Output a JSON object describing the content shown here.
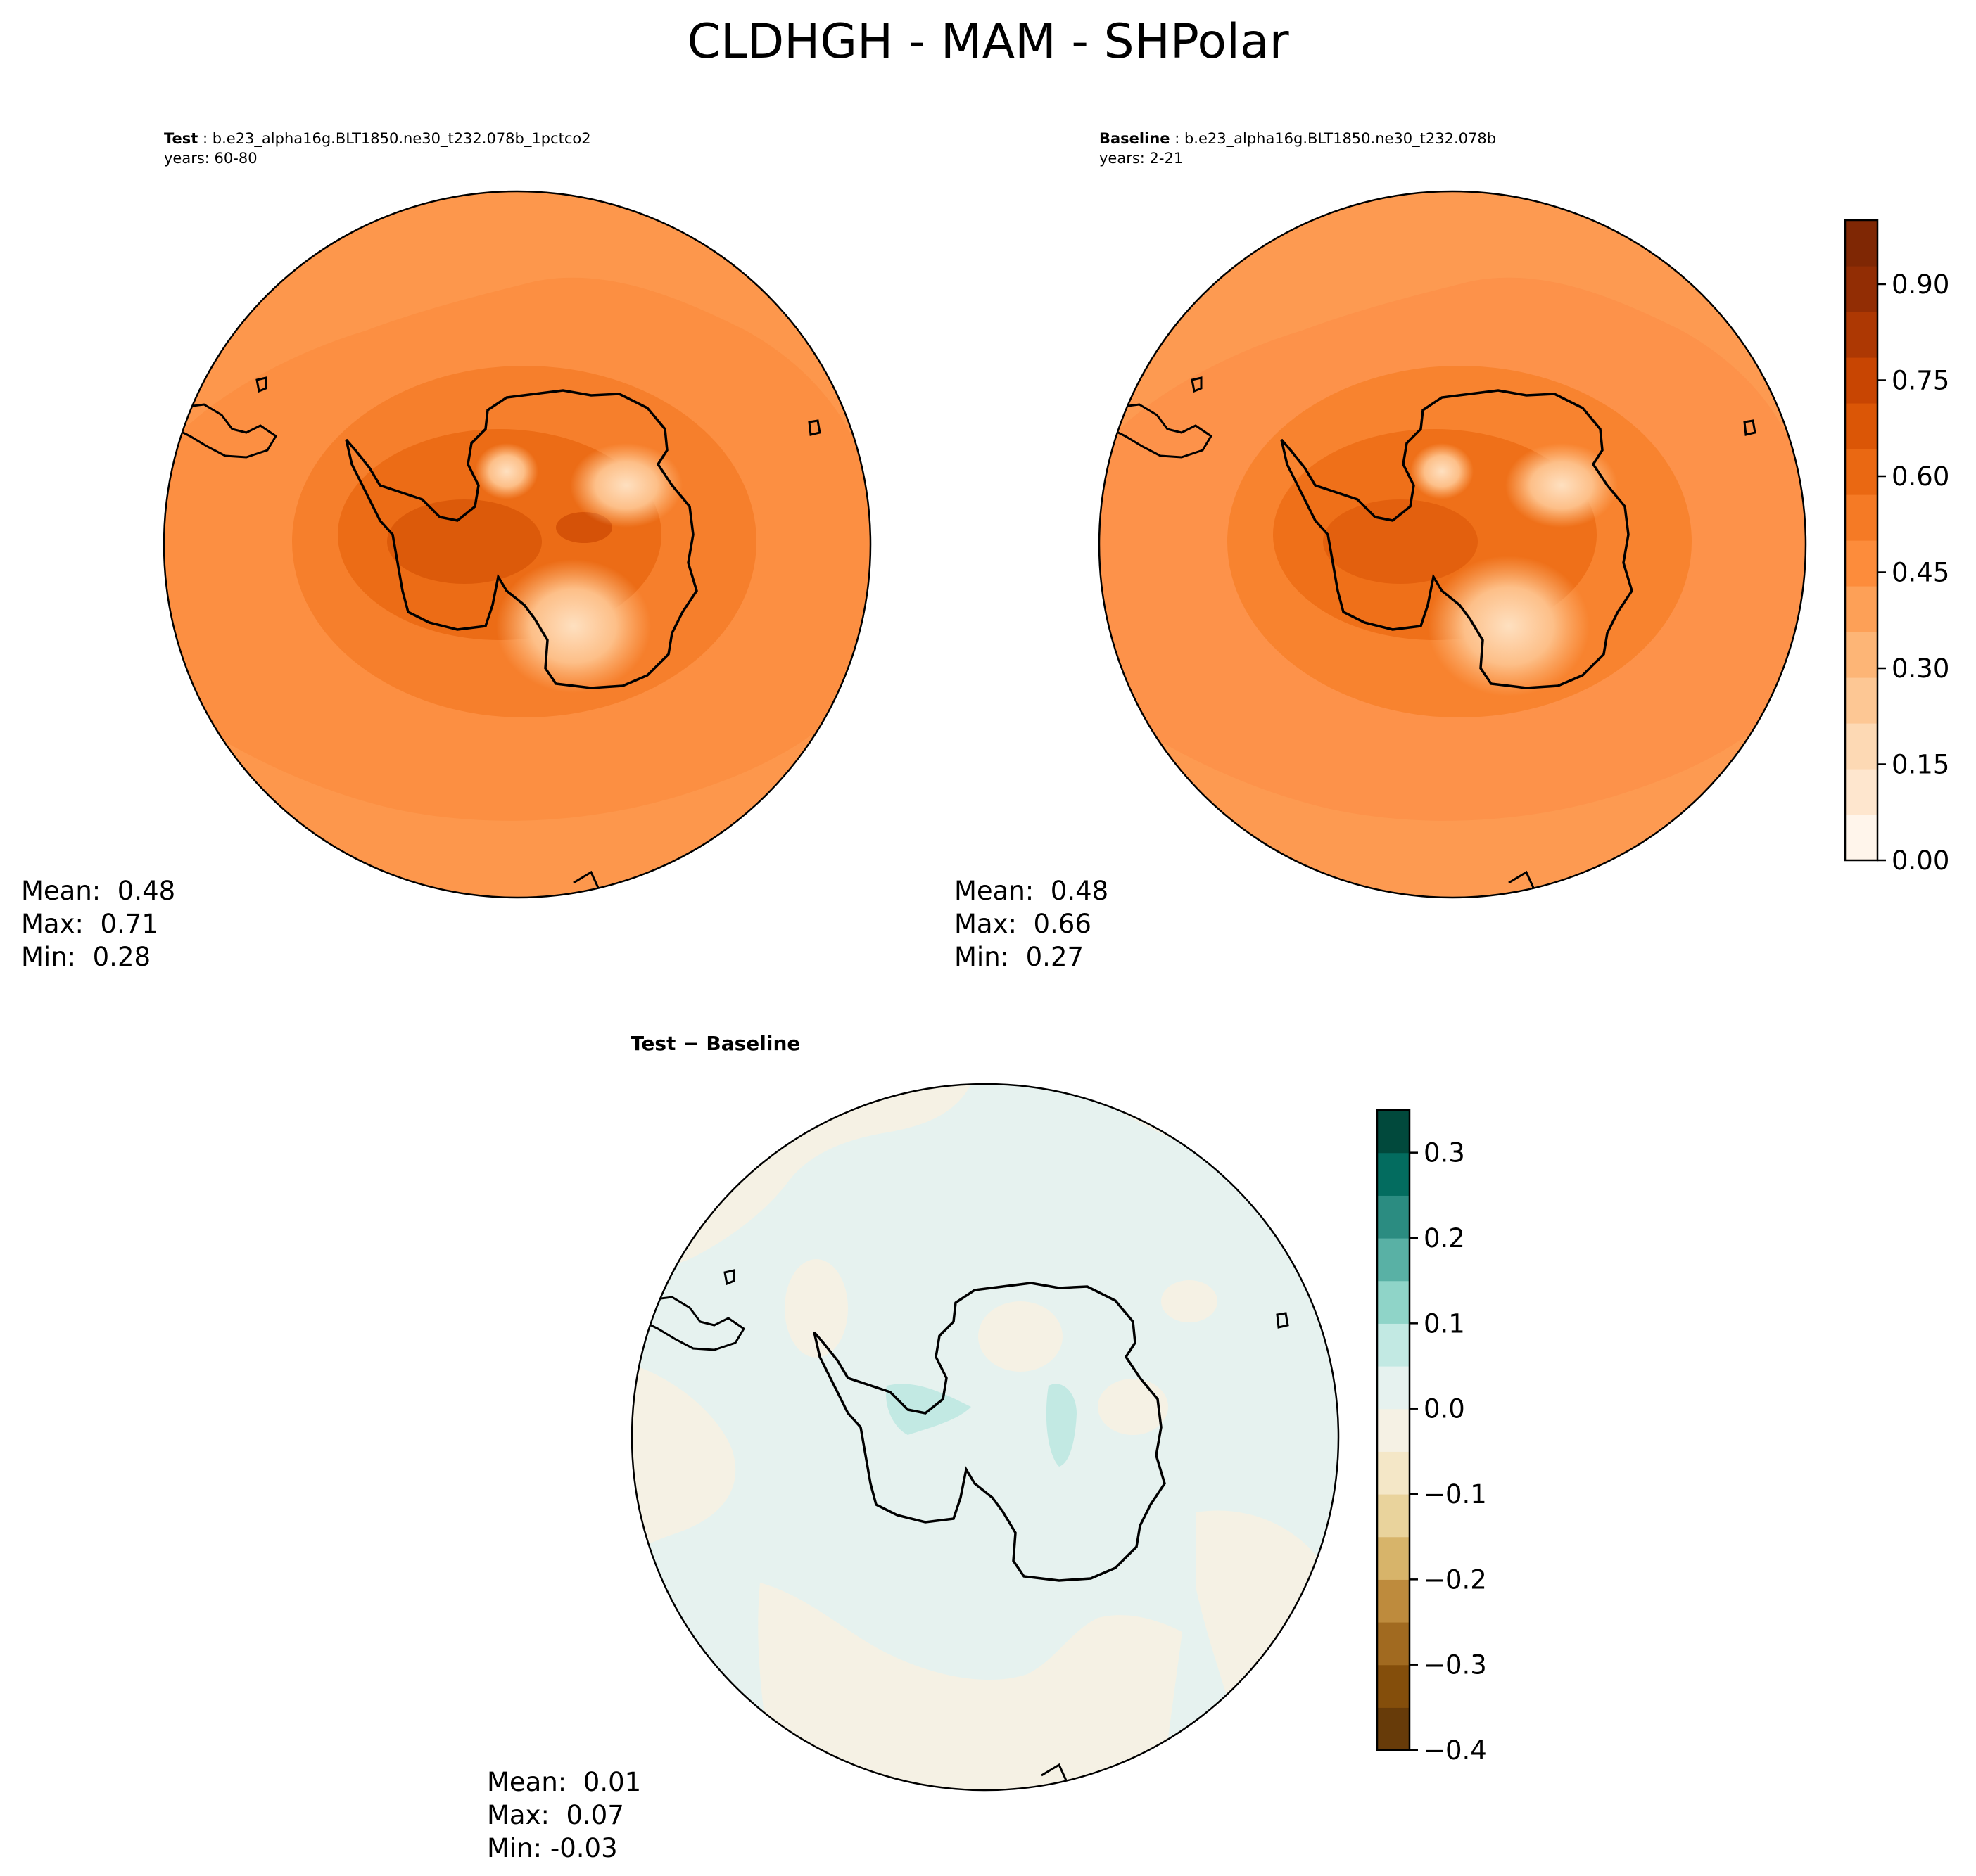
{
  "suptitle": "CLDHGH - MAM - SHPolar",
  "panels": {
    "test": {
      "label": "Test",
      "case": "b.e23_alpha16g.BLT1850.ne30_t232.078b_1pctco2",
      "years": "years: 60-80",
      "stats": {
        "mean": "Mean:  0.48",
        "max": "Max:  0.71",
        "min": "Min:  0.28"
      }
    },
    "baseline": {
      "label": "Baseline",
      "case": "b.e23_alpha16g.BLT1850.ne30_t232.078b",
      "years": "years: 2-21",
      "stats": {
        "mean": "Mean:  0.48",
        "max": "Max:  0.66",
        "min": "Min:  0.27"
      }
    },
    "diff": {
      "label": "Test − Baseline",
      "stats": {
        "mean": "Mean:  0.01",
        "max": "Max:  0.07",
        "min": "Min: -0.03"
      }
    }
  },
  "colorbars": {
    "main": {
      "range": [
        0,
        1
      ],
      "ticks": [
        "0.00",
        "0.15",
        "0.30",
        "0.45",
        "0.60",
        "0.75",
        "0.90"
      ],
      "colors": [
        "#fff5eb",
        "#fee6ce",
        "#fdd9b4",
        "#fdc794",
        "#fdb576",
        "#fda057",
        "#fd8c3b",
        "#f57a25",
        "#ea6812",
        "#db5606",
        "#c84502",
        "#ad3803",
        "#922d04",
        "#7f2704"
      ]
    },
    "diff": {
      "range": [
        -0.4,
        0.35
      ],
      "ticks": [
        "−0.4",
        "−0.3",
        "−0.2",
        "−0.1",
        "0.0",
        "0.1",
        "0.2",
        "0.3"
      ],
      "colors": [
        "#673b09",
        "#844e0b",
        "#a16a20",
        "#be8b3d",
        "#d7b46a",
        "#e9d39c",
        "#f4e7c7",
        "#f5f1e4",
        "#e6f2ef",
        "#c2e9e3",
        "#8fd4c8",
        "#59b1a5",
        "#2b8c81",
        "#036c5f",
        "#01493c"
      ]
    }
  },
  "map_colors": {
    "ocean_test": "#fc8f42",
    "ocean_baseline": "#fd924a",
    "diff_neg": "#f5f1e4",
    "diff_pos": "#e6f2ef"
  }
}
